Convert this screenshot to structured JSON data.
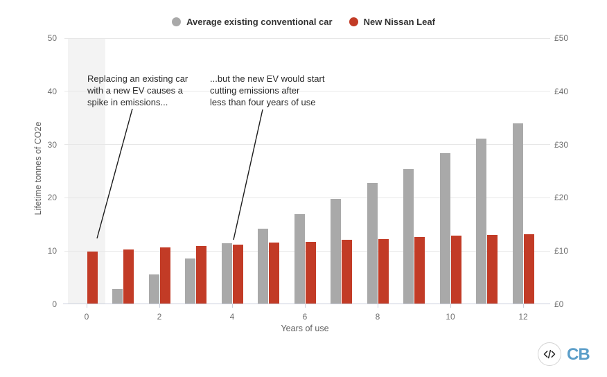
{
  "legend": {
    "items": [
      {
        "label": "Average existing conventional car",
        "color": "#a9a9a9"
      },
      {
        "label": "New Nissan Leaf",
        "color": "#c23b26"
      }
    ]
  },
  "annotations": [
    {
      "text": "Replacing an existing car\nwith a new EV causes a\nspike in emissions..."
    },
    {
      "text": "...but the new EV would start\ncutting emissions after\nless than four years of use"
    }
  ],
  "chart_data": {
    "type": "bar",
    "title": "",
    "xlabel": "Years of use",
    "ylabel": "Lifetime tonnes of CO2e",
    "categories": [
      0,
      1,
      2,
      3,
      4,
      5,
      6,
      7,
      8,
      9,
      10,
      11,
      12
    ],
    "series": [
      {
        "name": "Average existing conventional car",
        "color": "#a9a9a9",
        "values": [
          0,
          2.8,
          5.5,
          8.5,
          11.3,
          14.1,
          16.8,
          19.7,
          22.6,
          25.3,
          28.2,
          31.0,
          33.8
        ]
      },
      {
        "name": "New Nissan Leaf",
        "color": "#c23b26",
        "values": [
          9.8,
          10.1,
          10.5,
          10.8,
          11.1,
          11.4,
          11.6,
          12.0,
          12.1,
          12.5,
          12.7,
          12.9,
          13.0
        ]
      }
    ],
    "ylim": [
      0,
      50
    ],
    "yticks_left": [
      "0",
      "10",
      "20",
      "30",
      "40",
      "50"
    ],
    "yticks_right": [
      "£0",
      "£10",
      "£20",
      "£30",
      "£40",
      "£50"
    ],
    "xticks": [
      "0",
      "2",
      "4",
      "6",
      "8",
      "10",
      "12"
    ],
    "grid": "horizontal",
    "legend_position": "top",
    "highlight_band": {
      "covers": "year 0",
      "color": "#f3f3f3"
    }
  },
  "footer": {
    "logo_text": "CB",
    "embed_icon": "code-icon"
  }
}
